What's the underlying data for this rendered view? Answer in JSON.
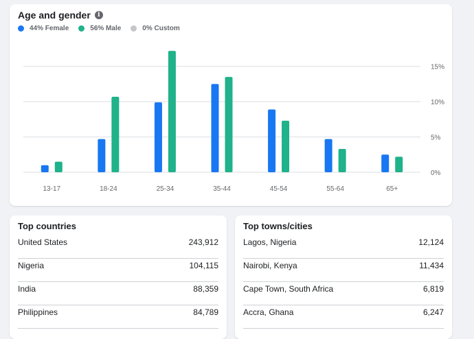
{
  "age_gender": {
    "title": "Age and gender",
    "info_icon": "info-icon",
    "legend": [
      {
        "label": "44% Female",
        "color": "#1877f2"
      },
      {
        "label": "56% Male",
        "color": "#20b28a"
      },
      {
        "label": "0% Custom",
        "color": "#c4c6ca"
      }
    ]
  },
  "chart_data": {
    "type": "bar",
    "categories": [
      "13-17",
      "18-24",
      "25-34",
      "35-44",
      "45-54",
      "55-64",
      "65+"
    ],
    "series": [
      {
        "name": "Female",
        "color": "#1877f2",
        "values": [
          1.0,
          4.7,
          9.9,
          12.5,
          8.9,
          4.7,
          2.5
        ]
      },
      {
        "name": "Male",
        "color": "#20b28a",
        "values": [
          1.5,
          10.7,
          17.2,
          13.5,
          7.3,
          3.3,
          2.2
        ]
      },
      {
        "name": "Custom",
        "color": "#c4c6ca",
        "values": [
          0,
          0,
          0,
          0,
          0,
          0,
          0
        ]
      }
    ],
    "yticks": [
      "0%",
      "5%",
      "10%",
      "15%"
    ],
    "ytick_values": [
      0,
      5,
      10,
      15
    ],
    "ylim": [
      0,
      17.5
    ],
    "ylabel": "",
    "xlabel": ""
  },
  "top_countries": {
    "title": "Top countries",
    "rows": [
      {
        "name": "United States",
        "value": "243,912"
      },
      {
        "name": "Nigeria",
        "value": "104,115"
      },
      {
        "name": "India",
        "value": "88,359"
      },
      {
        "name": "Philippines",
        "value": "84,789"
      }
    ]
  },
  "top_cities": {
    "title": "Top towns/cities",
    "rows": [
      {
        "name": "Lagos, Nigeria",
        "value": "12,124"
      },
      {
        "name": "Nairobi, Kenya",
        "value": "11,434"
      },
      {
        "name": "Cape Town, South Africa",
        "value": "6,819"
      },
      {
        "name": "Accra, Ghana",
        "value": "6,247"
      }
    ]
  }
}
